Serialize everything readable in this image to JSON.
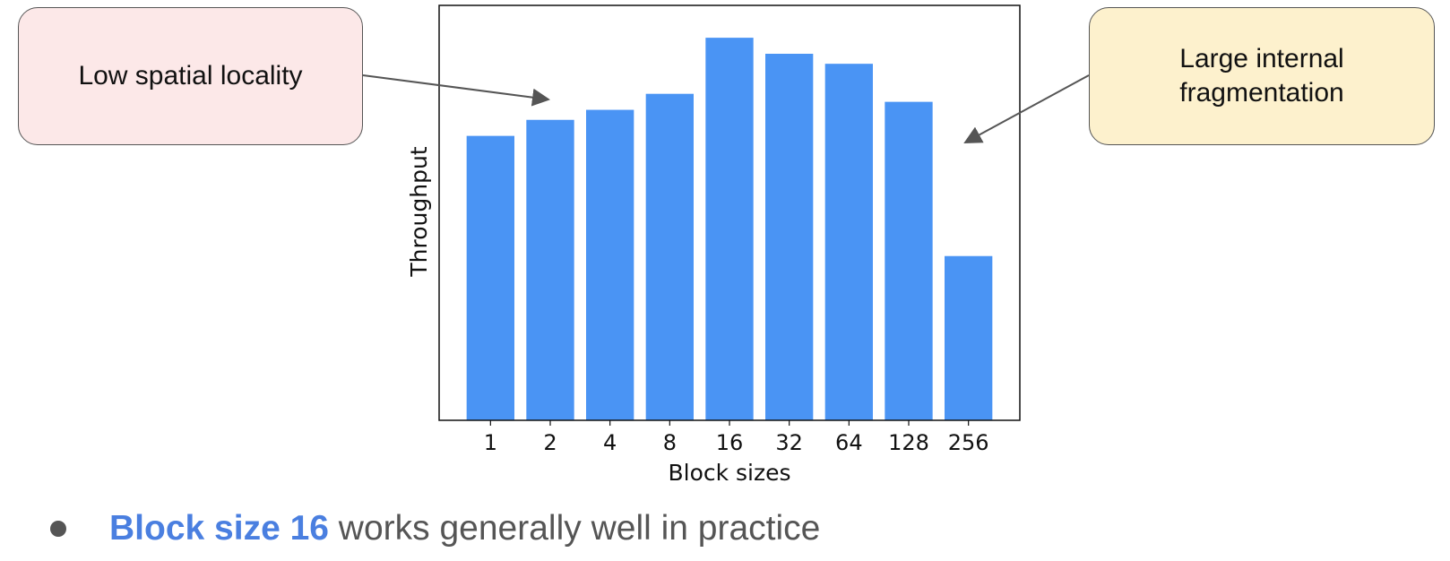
{
  "callouts": {
    "left": "Low spatial locality",
    "right": "Large internal\nfragmentation"
  },
  "bullet": {
    "highlight": "Block size 16",
    "rest": " works generally well in practice"
  },
  "colors": {
    "bar": "#4a94f4",
    "highlight": "#4a7fe0",
    "bullet_text": "#555555",
    "left_callout_bg": "#fce8e8",
    "right_callout_bg": "#fdf1cd",
    "arrow": "#555555"
  },
  "chart_data": {
    "type": "bar",
    "title": "",
    "xlabel": "Block sizes",
    "ylabel": "Throughput",
    "categories": [
      "1",
      "2",
      "4",
      "8",
      "16",
      "32",
      "64",
      "128",
      "256"
    ],
    "values": [
      71,
      75,
      77.5,
      81.5,
      95.5,
      91.5,
      89,
      79.5,
      41
    ],
    "ylim": [
      0,
      100
    ],
    "y_ticks_shown": false,
    "grid": false
  }
}
